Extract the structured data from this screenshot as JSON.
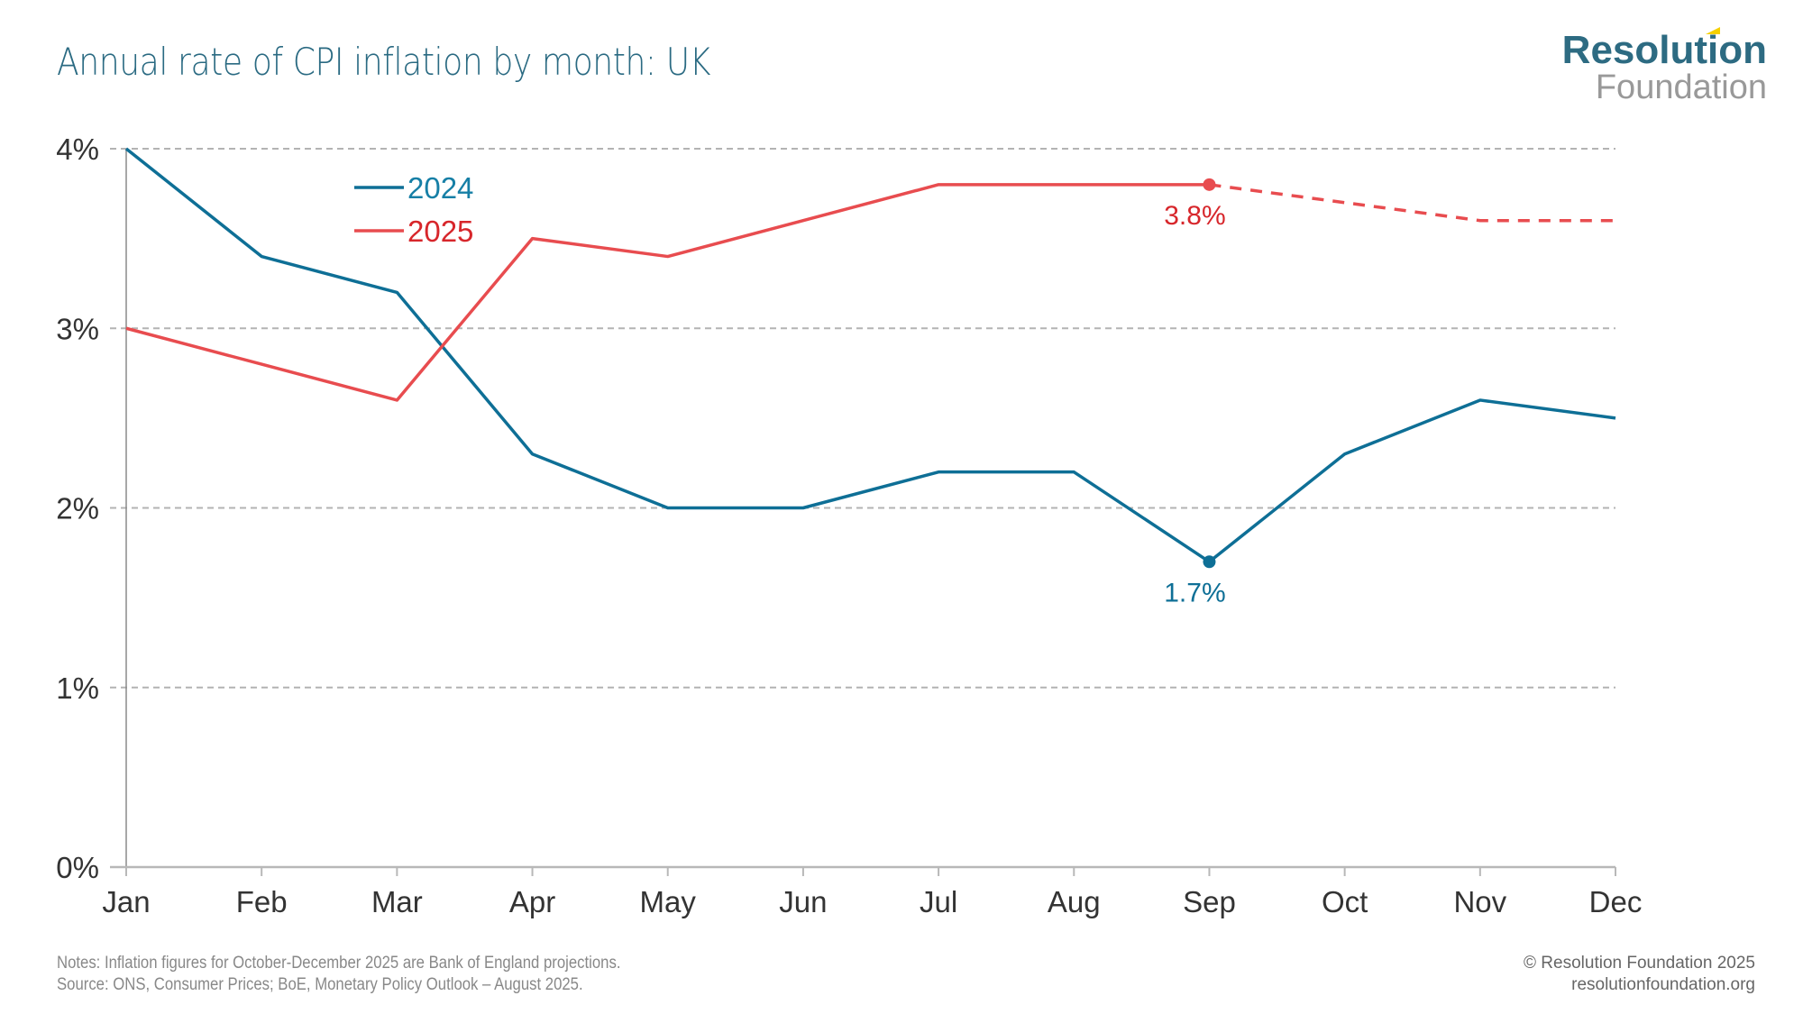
{
  "header": {
    "title": "Annual rate of CPI inflation by month: UK",
    "logo_line1": "Resolution",
    "logo_line2": "Foundation"
  },
  "footer": {
    "notes": "Notes: Inflation figures for October-December 2025 are Bank of England projections.",
    "source": "Source: ONS, Consumer Prices; BoE, Monetary Policy Outlook – August 2025.",
    "copyright": "© Resolution Foundation 2025",
    "website": "resolutionfoundation.org"
  },
  "chart_data": {
    "type": "line",
    "title": "Annual rate of CPI inflation by month: UK",
    "xlabel": "",
    "ylabel": "",
    "x": [
      "Jan",
      "Feb",
      "Mar",
      "Apr",
      "May",
      "Jun",
      "Jul",
      "Aug",
      "Sep",
      "Oct",
      "Nov",
      "Dec"
    ],
    "ylim": [
      0,
      4
    ],
    "yticks": [
      0,
      1,
      2,
      3,
      4
    ],
    "ytick_labels": [
      "0%",
      "1%",
      "2%",
      "3%",
      "4%"
    ],
    "grid": true,
    "legend_position": "top-left",
    "series": [
      {
        "name": "2024",
        "color": "#0e6f96",
        "values": [
          4.0,
          3.4,
          3.2,
          2.3,
          2.0,
          2.0,
          2.2,
          2.2,
          1.7,
          2.3,
          2.6,
          2.5
        ]
      },
      {
        "name": "2025",
        "color": "#e84c4f",
        "values": [
          3.0,
          2.8,
          2.6,
          3.5,
          3.4,
          3.6,
          3.8,
          3.8,
          3.8,
          3.7,
          3.6,
          3.6
        ],
        "projected_from_index": 8
      }
    ],
    "annotations": [
      {
        "series": "2025",
        "x": "Sep",
        "value": 3.8,
        "label": "3.8%",
        "color": "#d7262b"
      },
      {
        "series": "2024",
        "x": "Sep",
        "value": 1.7,
        "label": "1.7%",
        "color": "#0e6f96"
      }
    ]
  }
}
